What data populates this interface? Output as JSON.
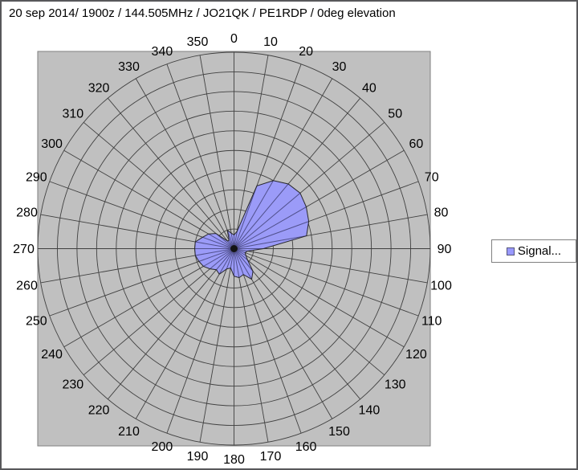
{
  "title": "20 sep 2014/ 1900z / 144.505MHz / JO21QK / PE1RDP / 0deg elevation",
  "legend": {
    "series_label": "Signal...",
    "position": "right",
    "marker_icon": "series-swatch-square"
  },
  "colors": {
    "page_background": "#ffffff",
    "frame_border": "#58585a",
    "plot_background": "#c0c0c0",
    "plot_border": "#7f7f7f",
    "grid_line": "#404040",
    "series_fill": "#9b9bf8",
    "series_outline": "#26262b",
    "inner_spoke": "#50508c",
    "center_blob": "#141414",
    "label_text": "#000000",
    "legend_marker_fill": "#9999ff"
  },
  "chart_data": {
    "type": "radar",
    "title": "20 sep 2014/ 1900z / 144.505MHz / JO21QK / PE1RDP / 0deg elevation",
    "angle_unit": "degrees",
    "angle_direction": "clockwise-from-north",
    "categories": [
      "0",
      "10",
      "20",
      "30",
      "40",
      "50",
      "60",
      "70",
      "80",
      "90",
      "100",
      "110",
      "120",
      "130",
      "140",
      "150",
      "160",
      "170",
      "180",
      "190",
      "200",
      "210",
      "220",
      "230",
      "240",
      "250",
      "260",
      "270",
      "280",
      "290",
      "300",
      "310",
      "320",
      "330",
      "340",
      "350"
    ],
    "radial_axis": {
      "min": 0,
      "max": 10,
      "rings": 10,
      "tick_labels_visible": false
    },
    "grid": "on",
    "legend_position": "right",
    "series": [
      {
        "name": "Signal...",
        "values": [
          0.7,
          0.9,
          3.4,
          4.0,
          4.3,
          4.4,
          4.25,
          4.05,
          3.75,
          1.5,
          0.7,
          0.6,
          0.7,
          0.9,
          1.5,
          1.8,
          1.4,
          1.5,
          1.4,
          1.0,
          1.1,
          1.5,
          1.4,
          1.6,
          1.8,
          1.9,
          2.0,
          2.0,
          2.0,
          1.7,
          1.5,
          1.2,
          0.5,
          0.5,
          1.0,
          0.8
        ]
      }
    ]
  }
}
